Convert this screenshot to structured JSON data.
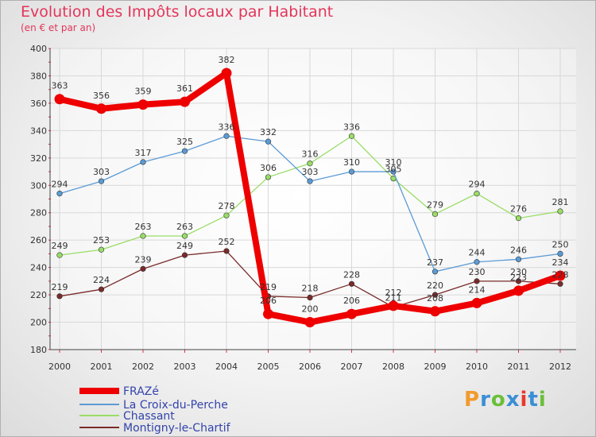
{
  "title": "Evolution des Impôts locaux par Habitant",
  "subtitle": "(en € et par an)",
  "logo": {
    "text": "Proxiti",
    "colors": [
      "#f29a2e",
      "#3a8fd6",
      "#6bbf3a",
      "#3a8fd6",
      "#e8392e",
      "#3a8fd6",
      "#6bbf3a"
    ]
  },
  "chart_data": {
    "type": "line",
    "title": "Evolution des Impôts locaux par Habitant",
    "subtitle": "(en € et par an)",
    "x": [
      "2000",
      "2001",
      "2002",
      "2003",
      "2004",
      "2005",
      "2006",
      "2007",
      "2008",
      "2009",
      "2010",
      "2011",
      "2012"
    ],
    "ylim": [
      180,
      400
    ],
    "yticks": [
      180,
      200,
      220,
      240,
      260,
      280,
      300,
      320,
      340,
      360,
      380,
      400
    ],
    "legend_position": "bottom-left",
    "series": [
      {
        "name": "FRAZé",
        "color": "#ee0000",
        "values": [
          363,
          356,
          359,
          361,
          382,
          206,
          200,
          206,
          212,
          208,
          214,
          223,
          234
        ]
      },
      {
        "name": "La Croix-du-Perche",
        "color": "#5b9bd5",
        "values": [
          294,
          303,
          317,
          325,
          336,
          332,
          303,
          310,
          310,
          237,
          244,
          246,
          250
        ]
      },
      {
        "name": "Chassant",
        "color": "#99dd66",
        "values": [
          249,
          253,
          263,
          263,
          278,
          306,
          316,
          336,
          305,
          279,
          294,
          276,
          281
        ]
      },
      {
        "name": "Montigny-le-Chartif",
        "color": "#7a2a2a",
        "values": [
          219,
          224,
          239,
          249,
          252,
          219,
          218,
          228,
          211,
          220,
          230,
          230,
          228
        ]
      }
    ]
  }
}
